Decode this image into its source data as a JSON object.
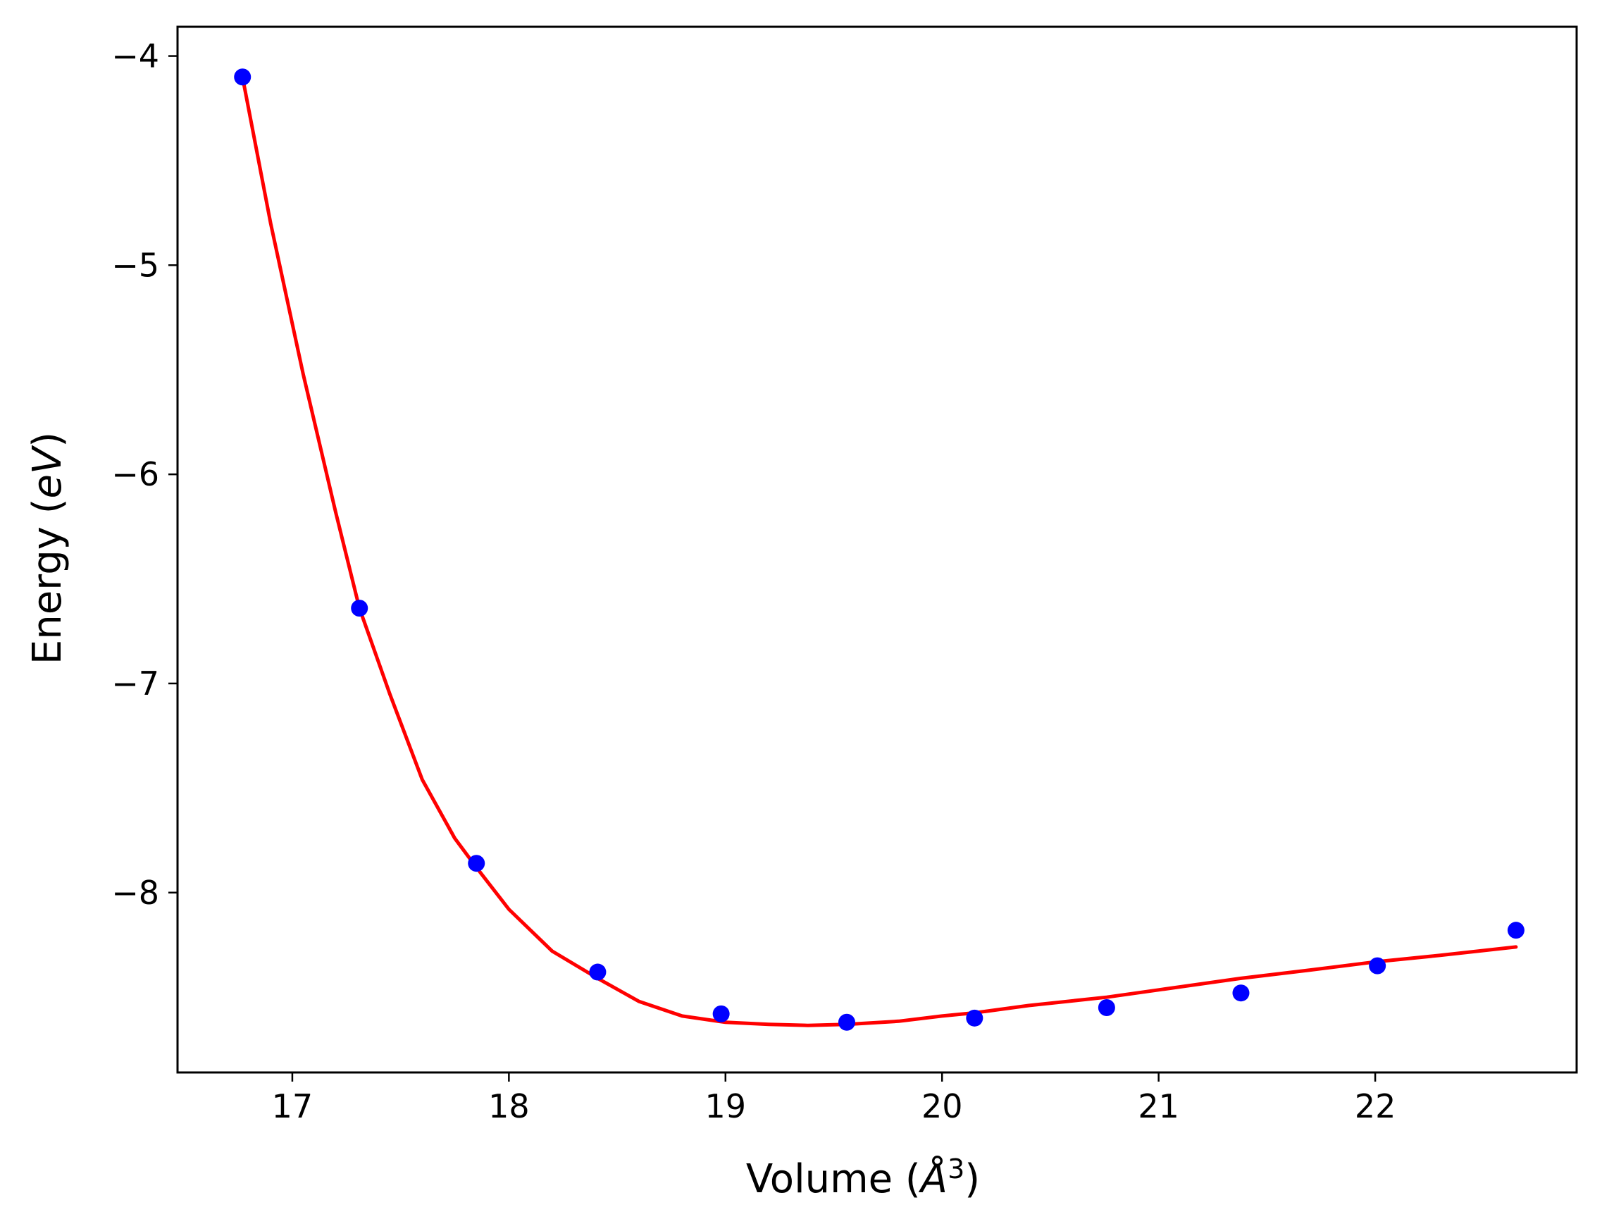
{
  "chart_data": {
    "type": "scatter",
    "title": "",
    "xlabel": "Volume (Å³)",
    "ylabel": "Energy (eV)",
    "xlabel_parts": {
      "prefix": "Volume (",
      "symbol": "Å",
      "sup": "3",
      "suffix": ")"
    },
    "ylabel_parts": {
      "prefix": "Energy (",
      "unit": "eV",
      "suffix": ")"
    },
    "xlim": [
      16.47,
      22.93
    ],
    "ylim": [
      -8.86,
      -3.86
    ],
    "x_ticks": [
      17,
      18,
      19,
      20,
      21,
      22
    ],
    "x_tick_labels": [
      "17",
      "18",
      "19",
      "20",
      "21",
      "22"
    ],
    "y_ticks": [
      -4,
      -5,
      -6,
      -7,
      -8
    ],
    "y_tick_labels": [
      "−4",
      "−5",
      "−6",
      "−7",
      "−8"
    ],
    "grid": false,
    "legend": "none",
    "series": [
      {
        "kind": "points",
        "color": "#0000ff",
        "x": [
          16.77,
          17.31,
          17.85,
          18.41,
          18.98,
          19.56,
          20.15,
          20.76,
          21.38,
          22.01,
          22.65
        ],
        "y": [
          -4.1,
          -6.64,
          -7.86,
          -8.38,
          -8.58,
          -8.62,
          -8.6,
          -8.55,
          -8.48,
          -8.35,
          -8.18
        ]
      },
      {
        "kind": "fit-line",
        "color": "#ff0000",
        "x": [
          16.77,
          16.9,
          17.05,
          17.2,
          17.31,
          17.45,
          17.6,
          17.75,
          17.85,
          18.0,
          18.2,
          18.41,
          18.6,
          18.8,
          19.0,
          19.2,
          19.38,
          19.56,
          19.8,
          20.0,
          20.15,
          20.4,
          20.76,
          21.0,
          21.38,
          21.7,
          22.01,
          22.3,
          22.65
        ],
        "y": [
          -4.1,
          -4.8,
          -5.52,
          -6.18,
          -6.64,
          -7.05,
          -7.46,
          -7.74,
          -7.88,
          -8.08,
          -8.28,
          -8.41,
          -8.52,
          -8.59,
          -8.62,
          -8.63,
          -8.635,
          -8.63,
          -8.615,
          -8.59,
          -8.575,
          -8.54,
          -8.5,
          -8.465,
          -8.41,
          -8.37,
          -8.33,
          -8.3,
          -8.26
        ]
      }
    ]
  }
}
